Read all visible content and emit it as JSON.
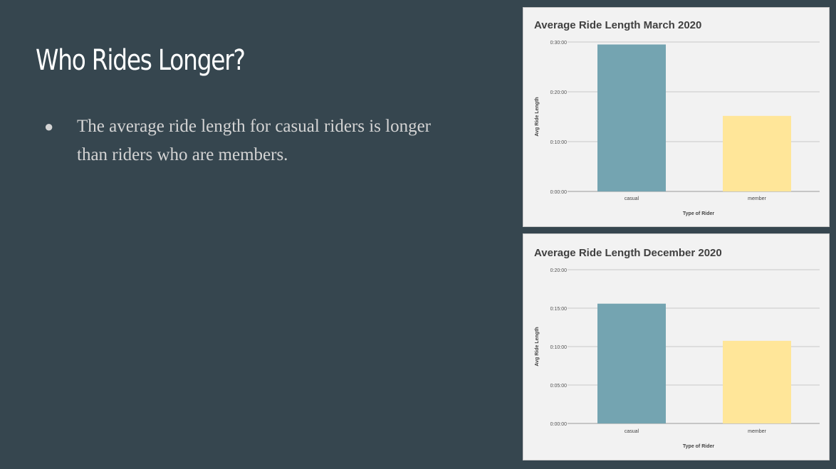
{
  "slide": {
    "title": "Who Rides Longer?",
    "bullets": [
      "The average ride length for casual riders is longer than riders who are members."
    ]
  },
  "colors": {
    "background": "#36464f",
    "casual": "#74a4b1",
    "member": "#ffe699",
    "chart_bg": "#f2f2f2",
    "grid": "#c8c8c8"
  },
  "chart_data": [
    {
      "type": "bar",
      "title": "Average Ride Length March 2020",
      "xlabel": "Type of Rider",
      "ylabel": "Avg Ride Length",
      "categories": [
        "casual",
        "member"
      ],
      "values": [
        "0:29:30",
        "0:15:10"
      ],
      "yticks": [
        "0:00:00",
        "0:10:00",
        "0:20:00",
        "0:30:00"
      ],
      "ylim": [
        "0:00:00",
        "0:30:00"
      ],
      "grid": true,
      "legend": "none"
    },
    {
      "type": "bar",
      "title": "Average Ride Length December 2020",
      "xlabel": "Type of Rider",
      "ylabel": "Avg Ride Length",
      "categories": [
        "casual",
        "member"
      ],
      "values": [
        "0:15:35",
        "0:10:45"
      ],
      "yticks": [
        "0:00:00",
        "0:05:00",
        "0:10:00",
        "0:15:00",
        "0:20:00"
      ],
      "ylim": [
        "0:00:00",
        "0:20:00"
      ],
      "grid": true,
      "legend": "none"
    }
  ]
}
